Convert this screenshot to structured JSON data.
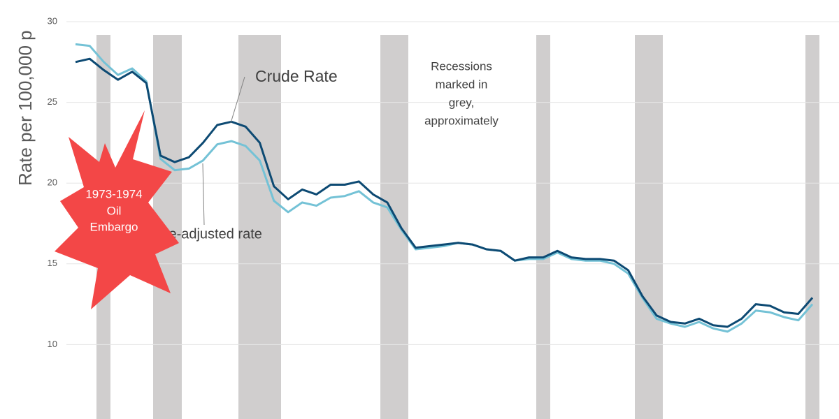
{
  "chart_data": {
    "type": "line",
    "y_label": "Rate per 100,000 p",
    "categories": [
      null,
      null,
      null,
      null,
      null,
      null,
      null,
      null,
      null,
      null,
      null,
      null,
      null,
      null,
      null,
      null,
      null,
      null,
      null,
      null,
      null,
      null,
      null,
      null,
      null,
      null,
      null,
      null,
      null,
      null,
      null,
      null,
      null,
      null,
      null,
      null,
      null,
      null,
      null,
      null,
      null,
      null,
      null,
      null,
      null,
      null,
      null,
      null,
      null,
      null,
      null,
      null,
      null
    ],
    "series": [
      {
        "name": "Crude Rate",
        "color": "#0d4a73",
        "values": [
          27.5,
          27.7,
          27.0,
          26.4,
          26.9,
          26.2,
          21.7,
          21.3,
          21.6,
          22.5,
          23.6,
          23.8,
          23.5,
          22.5,
          19.8,
          19.0,
          19.6,
          19.3,
          19.9,
          19.9,
          20.1,
          19.3,
          18.8,
          17.2,
          16.0,
          16.1,
          16.2,
          16.3,
          16.2,
          15.9,
          15.8,
          15.2,
          15.4,
          15.4,
          15.8,
          15.4,
          15.3,
          15.3,
          15.2,
          14.6,
          13.0,
          11.8,
          11.4,
          11.3,
          11.6,
          11.2,
          11.1,
          11.6,
          12.5,
          12.4,
          12.0,
          11.9,
          12.9
        ]
      },
      {
        "name": "Age-adjusted rate",
        "color": "#74c2d6",
        "values": [
          28.6,
          28.5,
          27.5,
          26.7,
          27.1,
          26.3,
          21.5,
          20.8,
          20.9,
          21.4,
          22.4,
          22.6,
          22.3,
          21.4,
          18.9,
          18.2,
          18.8,
          18.6,
          19.1,
          19.2,
          19.5,
          18.8,
          18.5,
          17.1,
          15.9,
          16.0,
          16.1,
          16.3,
          16.2,
          15.9,
          15.8,
          15.2,
          15.3,
          15.3,
          15.7,
          15.3,
          15.2,
          15.2,
          15.0,
          14.4,
          12.9,
          11.6,
          11.3,
          11.1,
          11.4,
          11.0,
          10.8,
          11.3,
          12.1,
          12.0,
          11.7,
          11.5,
          12.5
        ]
      }
    ],
    "ylim": [
      5,
      30
    ],
    "yticks": [
      10,
      15,
      20,
      25,
      30
    ],
    "grid": true,
    "recession_note": [
      "Recessions",
      "marked in",
      "grey,",
      "approximately"
    ],
    "embargo_note": [
      "1973-1974",
      "Oil",
      "Embargo"
    ]
  }
}
